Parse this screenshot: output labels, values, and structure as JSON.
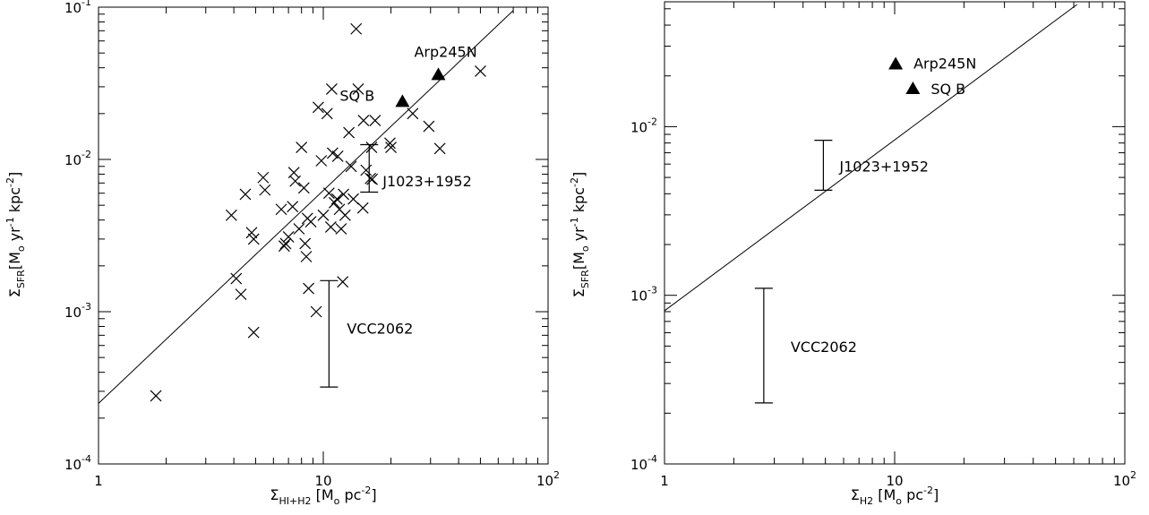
{
  "chart_data": [
    {
      "type": "scatter",
      "log_x": true,
      "log_y": true,
      "xlim": [
        1,
        100
      ],
      "ylim": [
        0.0001,
        0.1
      ],
      "x_ticks": [
        1,
        10,
        100
      ],
      "x_tick_labels": [
        "1",
        "10",
        "10^2"
      ],
      "y_ticks": [
        0.0001,
        0.001,
        0.01,
        0.1
      ],
      "y_tick_labels": [
        "10^-4",
        "10^-3",
        "10^-2",
        "10^-1"
      ],
      "xlabel": "Σ_{HI+H2} [M_o pc^-2]",
      "ylabel": "Σ_SFR[M_o yr^-1 kpc^-2]",
      "fit_line": {
        "x": [
          1,
          70
        ],
        "y": [
          0.00025,
          0.095
        ]
      },
      "crosses": {
        "x": [
          1.8,
          3.9,
          4.1,
          4.3,
          4.5,
          4.8,
          4.9,
          4.9,
          5.4,
          5.5,
          6.5,
          6.7,
          6.8,
          7.0,
          7.3,
          7.4,
          7.5,
          7.8,
          8.0,
          8.2,
          8.3,
          8.4,
          8.5,
          8.6,
          8.8,
          9.3,
          9.5,
          9.8,
          10.0,
          10.4,
          10.6,
          10.8,
          10.9,
          11.0,
          11.2,
          11.5,
          11.6,
          11.8,
          12.0,
          12.2,
          12.3,
          12.5,
          13.0,
          13.3,
          13.6,
          14.0,
          14.3,
          15.0,
          15.1,
          15.5,
          16.2,
          16.4,
          16.5,
          17.0,
          19.8,
          20.0,
          25.0,
          29.5,
          33.0,
          50.0
        ],
        "y": [
          0.00028,
          0.0043,
          0.00165,
          0.0013,
          0.0059,
          0.0033,
          0.003,
          0.00073,
          0.0076,
          0.0063,
          0.0047,
          0.0027,
          0.0028,
          0.0031,
          0.0049,
          0.0082,
          0.0072,
          0.0035,
          0.012,
          0.0065,
          0.0028,
          0.0023,
          0.0041,
          0.00142,
          0.0039,
          0.001,
          0.022,
          0.0098,
          0.0043,
          0.02,
          0.006,
          0.0036,
          0.029,
          0.011,
          0.0052,
          0.0055,
          0.0105,
          0.0047,
          0.0035,
          0.00157,
          0.0059,
          0.0043,
          0.015,
          0.009,
          0.0055,
          0.072,
          0.029,
          0.0048,
          0.018,
          0.0085,
          0.0075,
          0.012,
          0.0074,
          0.018,
          0.0128,
          0.012,
          0.02,
          0.0165,
          0.0118,
          0.038
        ]
      },
      "triangles": [
        {
          "x": 22.5,
          "y": 0.024,
          "label": "SQ B"
        },
        {
          "x": 32.5,
          "y": 0.036,
          "label": "Arp245N"
        }
      ],
      "error_bars": [
        {
          "x": 16.0,
          "y_low": 0.0061,
          "y_high": 0.0125,
          "label": "J1023+1952"
        },
        {
          "x": 10.6,
          "y_low": 0.00032,
          "y_high": 0.0016,
          "label": "VCC2062"
        }
      ]
    },
    {
      "type": "scatter",
      "log_x": true,
      "log_y": true,
      "xlim": [
        1,
        100
      ],
      "ylim": [
        0.0001,
        0.055
      ],
      "x_ticks": [
        1,
        10,
        100
      ],
      "x_tick_labels": [
        "1",
        "10",
        "10^2"
      ],
      "y_ticks": [
        0.0001,
        0.001,
        0.01
      ],
      "y_tick_labels": [
        "10^-4",
        "10^-3",
        "10^-2"
      ],
      "xlabel": "Σ_{H2} [M_o pc^-2]",
      "ylabel": "Σ_SFR[M_o yr^-1 kpc^-2]",
      "fit_line": {
        "x": [
          1,
          62
        ],
        "y": [
          0.00081,
          0.053
        ]
      },
      "triangles": [
        {
          "x": 10.1,
          "y": 0.0235,
          "label": "Arp245N"
        },
        {
          "x": 12.0,
          "y": 0.0168,
          "label": "SQ B"
        }
      ],
      "error_bars": [
        {
          "x": 4.9,
          "y_low": 0.0042,
          "y_high": 0.0083,
          "label": "J1023+1952"
        },
        {
          "x": 2.7,
          "y_low": 0.00023,
          "y_high": 0.0011,
          "label": "VCC2062"
        }
      ]
    }
  ]
}
